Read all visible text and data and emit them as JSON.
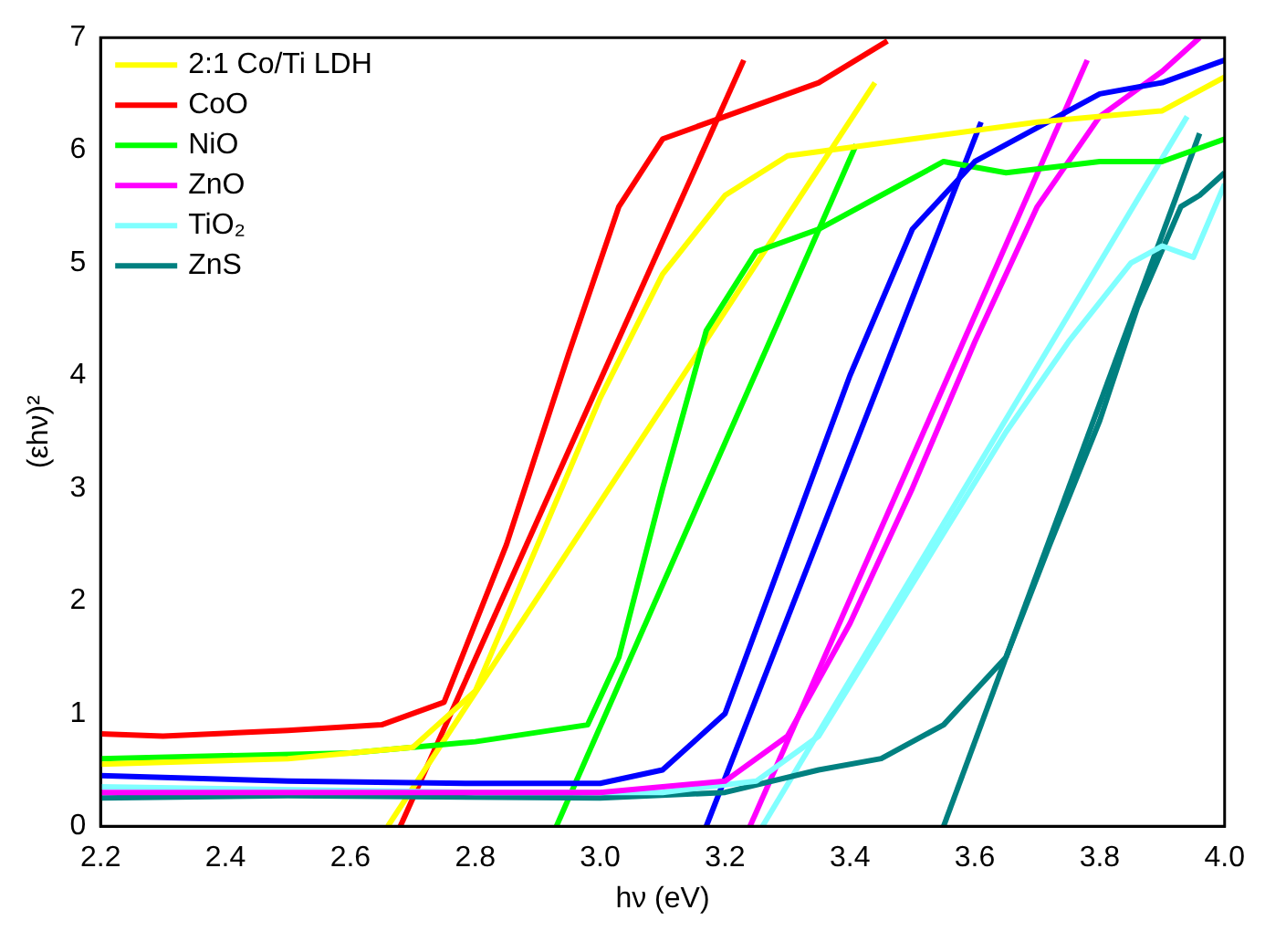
{
  "chart_data": {
    "type": "line",
    "xlabel": "hν (eV)",
    "ylabel": "(εhν)²",
    "xlim": [
      2.2,
      4.0
    ],
    "ylim": [
      0,
      7
    ],
    "xticks": [
      2.2,
      2.4,
      2.6,
      2.8,
      {
        "value": 3,
        "label": "3.0"
      },
      3.2,
      3.4,
      3.6,
      3.8,
      {
        "value": 4,
        "label": "4.0"
      }
    ],
    "yticks": [
      0,
      1,
      2,
      3,
      4,
      5,
      6,
      7
    ],
    "grid": false,
    "legend": "top left",
    "marker": "none",
    "line_style": "solid",
    "series": [
      {
        "name": "2:1 Co/Ti LDH",
        "color": "#ffff00",
        "x": [
          2.2,
          2.5,
          2.7,
          2.8,
          2.9,
          3.0,
          3.1,
          3.2,
          3.3,
          3.5,
          3.7,
          3.9,
          4.0
        ],
        "values": [
          0.55,
          0.6,
          0.7,
          1.2,
          2.5,
          3.8,
          4.9,
          5.6,
          5.95,
          6.1,
          6.25,
          6.35,
          6.65
        ]
      },
      {
        "color": "#0000ff",
        "x": [
          2.2,
          2.5,
          2.8,
          3.0,
          3.1,
          3.2,
          3.3,
          3.4,
          3.5,
          3.6,
          3.7,
          3.8,
          3.9,
          4.0
        ],
        "values": [
          0.45,
          0.4,
          0.38,
          0.38,
          0.5,
          1.0,
          2.5,
          4.0,
          5.3,
          5.9,
          6.2,
          6.5,
          6.6,
          6.8
        ]
      },
      {
        "name": "CoO",
        "color": "#ff0000",
        "x": [
          2.2,
          2.3,
          2.5,
          2.65,
          2.75,
          2.85,
          2.95,
          3.03,
          3.1,
          3.2,
          3.35,
          3.46
        ],
        "values": [
          0.82,
          0.8,
          0.85,
          0.9,
          1.1,
          2.5,
          4.2,
          5.5,
          6.1,
          6.3,
          6.6,
          6.97
        ]
      },
      {
        "name": "NiO",
        "color": "#00ff00",
        "x": [
          2.2,
          2.6,
          2.8,
          2.98,
          3.03,
          3.1,
          3.17,
          3.25,
          3.35,
          3.45,
          3.55,
          3.65,
          3.8,
          3.9,
          4.0
        ],
        "values": [
          0.6,
          0.65,
          0.75,
          0.9,
          1.5,
          3.0,
          4.4,
          5.1,
          5.3,
          5.6,
          5.9,
          5.8,
          5.9,
          5.9,
          6.1
        ]
      },
      {
        "name": "ZnO",
        "color": "#ff00ff",
        "x": [
          2.2,
          3.0,
          3.2,
          3.3,
          3.4,
          3.5,
          3.6,
          3.7,
          3.8,
          3.9,
          3.96
        ],
        "values": [
          0.3,
          0.3,
          0.4,
          0.8,
          1.8,
          3.0,
          4.3,
          5.5,
          6.3,
          6.7,
          7.0
        ]
      },
      {
        "name": "TiO₂",
        "color": "#80ffff",
        "x": [
          2.2,
          2.8,
          3.1,
          3.25,
          3.35,
          3.45,
          3.55,
          3.65,
          3.75,
          3.85,
          3.9,
          3.95,
          4.0
        ],
        "values": [
          0.35,
          0.3,
          0.3,
          0.4,
          0.8,
          1.7,
          2.6,
          3.5,
          4.3,
          5.0,
          5.15,
          5.05,
          5.7
        ]
      },
      {
        "name": "ZnS",
        "color": "#008080",
        "x": [
          2.2,
          2.5,
          3.0,
          3.2,
          3.35,
          3.45,
          3.55,
          3.65,
          3.72,
          3.8,
          3.86,
          3.93,
          3.96,
          4.0
        ],
        "values": [
          0.25,
          0.27,
          0.25,
          0.3,
          0.5,
          0.6,
          0.9,
          1.5,
          2.5,
          3.6,
          4.6,
          5.5,
          5.6,
          5.8
        ]
      },
      {
        "type": "line",
        "color": "#ffff00",
        "x": [
          2.66,
          3.44
        ],
        "values": [
          0,
          6.6
        ]
      },
      {
        "type": "line",
        "color": "#0000ff",
        "x": [
          3.17,
          3.61
        ],
        "values": [
          0,
          6.25
        ]
      },
      {
        "type": "line",
        "color": "#ff0000",
        "x": [
          2.68,
          3.23
        ],
        "values": [
          0,
          6.8
        ]
      },
      {
        "type": "line",
        "color": "#00ff00",
        "x": [
          2.93,
          3.41
        ],
        "values": [
          0,
          6.05
        ]
      },
      {
        "type": "line",
        "color": "#ff00ff",
        "x": [
          3.24,
          3.78
        ],
        "values": [
          0,
          6.8
        ]
      },
      {
        "type": "line",
        "color": "#80ffff",
        "x": [
          3.26,
          3.94
        ],
        "values": [
          0,
          6.3
        ]
      },
      {
        "type": "line",
        "color": "#008080",
        "x": [
          3.55,
          3.96
        ],
        "values": [
          0,
          6.15
        ]
      }
    ]
  }
}
